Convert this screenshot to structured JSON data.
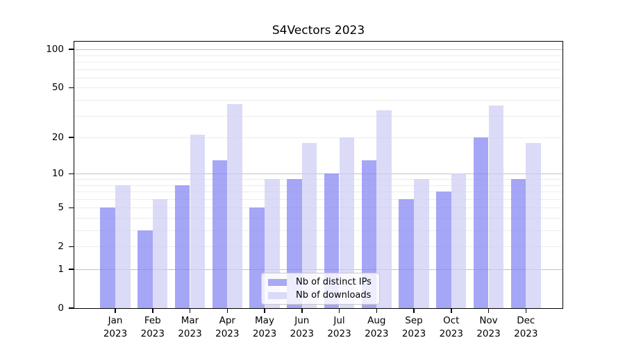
{
  "chart_data": {
    "type": "bar",
    "title": "S4Vectors 2023",
    "categories": [
      "Jan",
      "Feb",
      "Mar",
      "Apr",
      "May",
      "Jun",
      "Jul",
      "Aug",
      "Sep",
      "Oct",
      "Nov",
      "Dec"
    ],
    "x_sublabel_year": "2023",
    "series": [
      {
        "name": "Nb of distinct IPs",
        "color": "rgba(132,132,244,0.72)",
        "color_solid": "#a9a9f1",
        "values": [
          5,
          3,
          8,
          13,
          5,
          9,
          10,
          13,
          6,
          7,
          20,
          9
        ]
      },
      {
        "name": "Nb of downloads",
        "color": "rgba(205,205,245,0.72)",
        "color_solid": "#d9d9f8",
        "values": [
          8,
          6,
          21,
          37,
          9,
          18,
          20,
          33,
          9,
          10,
          36,
          18
        ]
      }
    ],
    "xlabel": "",
    "ylabel": "",
    "y_scale": "log1p",
    "ylim": [
      0,
      115
    ],
    "y_ticks": [
      0,
      1,
      2,
      5,
      10,
      20,
      50,
      100
    ],
    "y_major_gridlines": [
      1,
      10,
      100
    ],
    "y_minor_gridlines": [
      2,
      3,
      4,
      5,
      6,
      7,
      8,
      9,
      20,
      30,
      40,
      50,
      60,
      70,
      80,
      90
    ],
    "grid": "on",
    "legend_position": "lower center",
    "colors": {
      "spine": "#000000",
      "major_grid": "#c2c2c2",
      "minor_grid": "#ececec",
      "background": "#ffffff"
    }
  }
}
